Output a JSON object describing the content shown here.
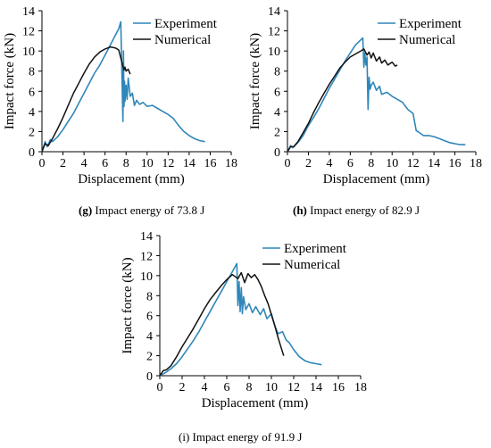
{
  "charts": [
    {
      "caption_tag": "(g)",
      "caption_text": "Impact energy of 73.8 J",
      "caption_tag_bold": true
    },
    {
      "caption_tag": "(h)",
      "caption_text": "Impact energy of 82.9 J",
      "caption_tag_bold": true
    },
    {
      "caption_tag": "(i)",
      "caption_text": "Impact energy of 91.9 J",
      "caption_tag_bold": false
    }
  ],
  "colors": {
    "experiment": "#2f86b9",
    "numerical": "#111111",
    "axis": "#000000"
  },
  "chart_data": [
    {
      "type": "line",
      "title": "",
      "xlabel": "Displacement (mm)",
      "ylabel": "Impact force (kN)",
      "xlim": [
        0,
        18
      ],
      "ylim": [
        0,
        14
      ],
      "xticks": [
        0,
        2,
        4,
        6,
        8,
        10,
        12,
        14,
        16,
        18
      ],
      "yticks": [
        0,
        2,
        4,
        6,
        8,
        10,
        12,
        14
      ],
      "legend": "top-right",
      "grid": false,
      "series": [
        {
          "name": "Experiment",
          "x": [
            0,
            0.3,
            0.5,
            0.8,
            1.0,
            1.5,
            2.0,
            2.5,
            3.0,
            3.5,
            4.0,
            4.5,
            5.0,
            5.5,
            6.0,
            6.5,
            7.0,
            7.3,
            7.5,
            7.6,
            7.7,
            7.75,
            7.8,
            7.85,
            7.9,
            8.0,
            8.1,
            8.2,
            8.4,
            8.6,
            8.8,
            9.0,
            9.3,
            9.6,
            10.0,
            10.5,
            11.0,
            11.5,
            12.0,
            12.5,
            13.0,
            13.5,
            14.0,
            14.5,
            15.0,
            15.5
          ],
          "y": [
            0,
            1.0,
            0.5,
            1.2,
            1.0,
            1.5,
            2.2,
            3.0,
            3.8,
            4.8,
            5.8,
            6.8,
            7.8,
            8.6,
            9.6,
            10.6,
            11.6,
            12.2,
            12.9,
            8.0,
            3.0,
            10.0,
            4.5,
            7.0,
            5.0,
            6.6,
            5.2,
            7.3,
            5.5,
            5.8,
            4.6,
            5.1,
            4.7,
            4.9,
            4.5,
            4.6,
            4.3,
            4.0,
            3.7,
            3.3,
            2.6,
            2.0,
            1.6,
            1.3,
            1.1,
            1.0
          ]
        },
        {
          "name": "Numerical",
          "x": [
            0,
            0.3,
            0.6,
            1.0,
            1.5,
            2.0,
            2.5,
            3.0,
            3.5,
            4.0,
            4.5,
            5.0,
            5.5,
            6.0,
            6.5,
            7.0,
            7.3,
            7.5,
            7.7,
            7.8,
            7.9,
            8.0,
            8.2,
            8.4
          ],
          "y": [
            0,
            0.8,
            0.6,
            1.3,
            2.3,
            3.4,
            4.6,
            5.8,
            6.8,
            7.8,
            8.7,
            9.4,
            9.9,
            10.2,
            10.4,
            10.3,
            10.1,
            9.3,
            8.5,
            8.1,
            8.4,
            8.0,
            8.2,
            7.7
          ]
        }
      ]
    },
    {
      "type": "line",
      "title": "",
      "xlabel": "Displacement (mm)",
      "ylabel": "Impact force (kN)",
      "xlim": [
        0,
        18
      ],
      "ylim": [
        0,
        14
      ],
      "xticks": [
        0,
        2,
        4,
        6,
        8,
        10,
        12,
        14,
        16,
        18
      ],
      "yticks": [
        0,
        2,
        4,
        6,
        8,
        10,
        12,
        14
      ],
      "legend": "top-right",
      "grid": false,
      "series": [
        {
          "name": "Experiment",
          "x": [
            0,
            0.3,
            0.5,
            1.0,
            1.5,
            2.0,
            2.5,
            3.0,
            3.5,
            4.0,
            4.5,
            5.0,
            5.5,
            6.0,
            6.5,
            7.0,
            7.2,
            7.3,
            7.4,
            7.5,
            7.6,
            7.7,
            7.8,
            7.9,
            8.0,
            8.2,
            8.5,
            8.8,
            9.0,
            9.5,
            10.0,
            10.5,
            11.0,
            11.5,
            12.0,
            12.3,
            12.6,
            13.0,
            13.5,
            14.0,
            14.5,
            15.0,
            15.5,
            16.0,
            16.5,
            17.0
          ],
          "y": [
            0,
            0.6,
            0.4,
            0.9,
            1.6,
            2.6,
            3.4,
            4.3,
            5.3,
            6.3,
            7.2,
            8.1,
            9.0,
            9.8,
            10.6,
            11.1,
            11.3,
            8.4,
            9.8,
            8.6,
            9.4,
            4.2,
            7.4,
            6.2,
            6.6,
            6.9,
            6.1,
            6.5,
            5.7,
            5.9,
            5.5,
            5.2,
            4.9,
            4.2,
            3.8,
            2.1,
            1.9,
            1.6,
            1.6,
            1.5,
            1.3,
            1.1,
            0.9,
            0.8,
            0.7,
            0.7
          ]
        },
        {
          "name": "Numerical",
          "x": [
            0,
            0.3,
            0.6,
            1.0,
            1.5,
            2.0,
            2.5,
            3.0,
            3.5,
            4.0,
            4.5,
            5.0,
            5.5,
            6.0,
            6.5,
            7.0,
            7.3,
            7.6,
            7.8,
            8.0,
            8.2,
            8.5,
            8.8,
            9.0,
            9.3,
            9.6,
            10.0,
            10.3,
            10.5
          ],
          "y": [
            0,
            0.5,
            0.5,
            1.0,
            1.9,
            2.8,
            3.9,
            4.9,
            5.8,
            6.7,
            7.5,
            8.3,
            8.9,
            9.4,
            9.7,
            10.0,
            10.2,
            9.6,
            9.9,
            9.3,
            9.8,
            9.0,
            9.4,
            8.8,
            9.1,
            8.6,
            8.9,
            8.5,
            8.6
          ]
        }
      ]
    },
    {
      "type": "line",
      "title": "",
      "xlabel": "Displacement (mm)",
      "ylabel": "Impact force (kN)",
      "xlim": [
        0,
        18
      ],
      "ylim": [
        0,
        14
      ],
      "xticks": [
        0,
        2,
        4,
        6,
        8,
        10,
        12,
        14,
        16,
        18
      ],
      "yticks": [
        0,
        2,
        4,
        6,
        8,
        10,
        12,
        14
      ],
      "legend": "top-right",
      "grid": false,
      "series": [
        {
          "name": "Experiment",
          "x": [
            0,
            0.5,
            1.0,
            1.5,
            2.0,
            2.5,
            3.0,
            3.5,
            4.0,
            4.5,
            5.0,
            5.5,
            6.0,
            6.5,
            6.9,
            7.0,
            7.1,
            7.2,
            7.3,
            7.4,
            7.5,
            7.7,
            8.0,
            8.3,
            8.6,
            9.0,
            9.3,
            9.6,
            10.0,
            10.3,
            10.6,
            11.0,
            11.3,
            11.6,
            12.0,
            12.5,
            13.0,
            13.5,
            14.0,
            14.5
          ],
          "y": [
            0,
            0.3,
            0.7,
            1.2,
            1.9,
            2.7,
            3.5,
            4.4,
            5.4,
            6.4,
            7.4,
            8.4,
            9.4,
            10.4,
            11.2,
            7.0,
            9.4,
            6.4,
            8.8,
            6.2,
            7.9,
            6.6,
            7.2,
            6.3,
            6.9,
            6.1,
            6.7,
            5.7,
            6.2,
            5.0,
            4.2,
            4.4,
            3.6,
            3.3,
            2.6,
            1.9,
            1.5,
            1.3,
            1.2,
            1.1
          ]
        },
        {
          "name": "Numerical",
          "x": [
            0,
            0.3,
            0.6,
            1.0,
            1.5,
            2.0,
            2.5,
            3.0,
            3.5,
            4.0,
            4.5,
            5.0,
            5.5,
            6.0,
            6.5,
            7.0,
            7.3,
            7.6,
            7.9,
            8.2,
            8.5,
            8.8,
            9.1,
            9.4,
            9.7,
            10.0,
            10.3,
            10.6,
            10.9,
            11.1
          ],
          "y": [
            0,
            0.5,
            0.6,
            1.0,
            1.9,
            2.9,
            3.8,
            4.7,
            5.7,
            6.7,
            7.6,
            8.3,
            9.0,
            9.6,
            10.1,
            9.7,
            10.3,
            9.3,
            10.2,
            9.8,
            10.1,
            9.6,
            8.9,
            8.0,
            7.2,
            6.1,
            5.0,
            3.8,
            2.7,
            2.0
          ]
        }
      ]
    }
  ]
}
